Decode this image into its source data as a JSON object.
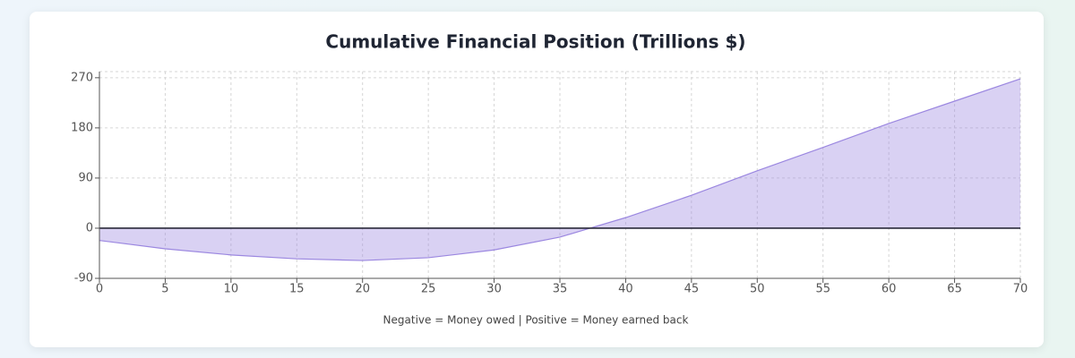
{
  "chart_data": {
    "type": "area",
    "title": "Cumulative Financial Position (Trillions $)",
    "note": "Negative = Money owed | Positive = Money earned back",
    "x": [
      0,
      5,
      10,
      15,
      20,
      25,
      30,
      35,
      40,
      45,
      50,
      55,
      60,
      65,
      70
    ],
    "series": [
      {
        "color": "#9b87e0",
        "values": [
          -22,
          -37,
          -48,
          -55,
          -58,
          -53,
          -39,
          -16,
          19,
          59,
          103,
          145,
          188,
          228,
          268
        ]
      }
    ],
    "xlim": [
      0,
      70
    ],
    "xticks": [
      0,
      5,
      10,
      15,
      20,
      25,
      30,
      35,
      40,
      45,
      50,
      55,
      60,
      65,
      70
    ],
    "ylim": [
      -90,
      281
    ],
    "yticks": [
      -90,
      0,
      90,
      180,
      270
    ],
    "grid": true
  }
}
